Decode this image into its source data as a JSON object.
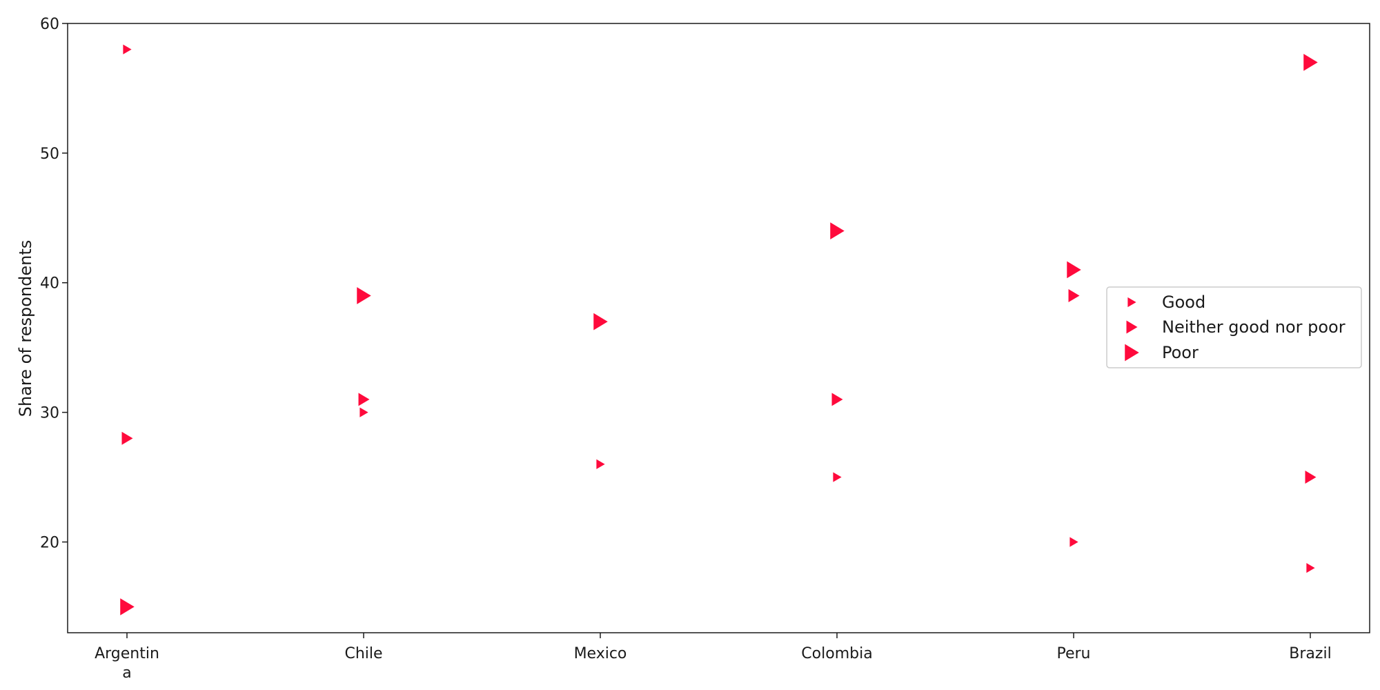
{
  "chart_data": {
    "type": "scatter",
    "title": "",
    "xlabel": "",
    "ylabel": "Share of respondents",
    "categories": [
      "Argentina",
      "Chile",
      "Mexico",
      "Colombia",
      "Peru",
      "Brazil"
    ],
    "category_label_lines": [
      [
        "Argentin",
        "a"
      ],
      [
        "Chile"
      ],
      [
        "Mexico"
      ],
      [
        "Colombia"
      ],
      [
        "Peru"
      ],
      [
        "Brazil"
      ]
    ],
    "ylim": [
      13,
      60
    ],
    "yticks": [
      20,
      30,
      40,
      50,
      60
    ],
    "grid": false,
    "legend_position": "center-right",
    "marker": "triangle-right",
    "color": "#ff0a3c",
    "series": [
      {
        "name": "Good",
        "values": [
          58,
          30,
          26,
          25,
          20,
          18
        ]
      },
      {
        "name": "Neither good nor poor",
        "values": [
          28,
          31,
          37,
          31,
          39,
          25
        ]
      },
      {
        "name": "Poor",
        "values": [
          15,
          39,
          37,
          44,
          41,
          57
        ]
      }
    ]
  }
}
